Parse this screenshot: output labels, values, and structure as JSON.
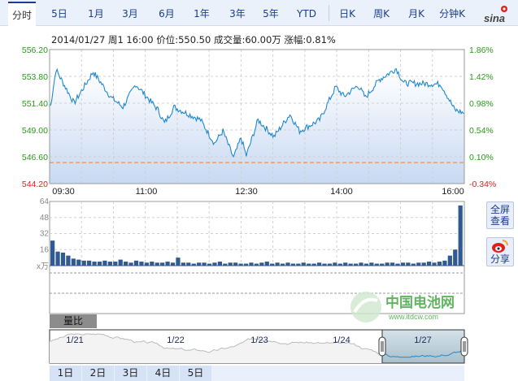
{
  "tabs": [
    {
      "label": "分时",
      "active": true
    },
    {
      "label": "5日"
    },
    {
      "label": "1月"
    },
    {
      "label": "3月"
    },
    {
      "label": "6月"
    },
    {
      "label": "1年"
    },
    {
      "label": "3年"
    },
    {
      "label": "5年"
    },
    {
      "label": "YTD"
    },
    {
      "label": "日K"
    },
    {
      "label": "周K"
    },
    {
      "label": "月K"
    },
    {
      "label": "分钟K"
    }
  ],
  "logo": "sina",
  "info": "2014/01/27 周1 16:00  价位:550.50  成交量:60.00万  涨幅:0.81%",
  "colors": {
    "line": "#1f88d0",
    "prevClose": "#f07d2a",
    "up": "#2a9a1a",
    "down": "#e0201b",
    "volume": "#2f5b92",
    "tabText": "#1a3d8f"
  },
  "chart_data": [
    {
      "type": "area",
      "ylim": [
        544.2,
        556.2
      ],
      "y_ticks_left": [
        "556.20",
        "553.80",
        "551.40",
        "549.00",
        "546.60",
        "544.20"
      ],
      "y_ticks_right": [
        "1.86%",
        "1.42%",
        "0.98%",
        "0.54%",
        "0.10%",
        "-0.34%"
      ],
      "x_ticks": [
        "09:30",
        "11:00",
        "12:30",
        "14:00",
        "16:00"
      ],
      "prev_close": 546.08,
      "grid": true,
      "points": [
        [
          "09:30",
          551.2
        ],
        [
          "09:31",
          551.2
        ],
        [
          "09:36",
          554.4
        ],
        [
          "09:53",
          551.4
        ],
        [
          "10:11",
          554.2
        ],
        [
          "10:28",
          551.9
        ],
        [
          "10:39",
          551.05
        ],
        [
          "10:51",
          553.1
        ],
        [
          "11:12",
          550.8
        ],
        [
          "11:18",
          549.6
        ],
        [
          "11:27",
          551.05
        ],
        [
          "11:52",
          549.9
        ],
        [
          "12:05",
          547.8
        ],
        [
          "12:13",
          548.9
        ],
        [
          "12:23",
          546.5
        ],
        [
          "12:30",
          548.3
        ],
        [
          "12:35",
          546.7
        ],
        [
          "12:46",
          549.9
        ],
        [
          "13:01",
          548.4
        ],
        [
          "13:16",
          550.4
        ],
        [
          "13:25",
          548.9
        ],
        [
          "13:44",
          549.9
        ],
        [
          "13:59",
          552.85
        ],
        [
          "14:07",
          552.0
        ],
        [
          "14:20",
          553.0
        ],
        [
          "14:27",
          551.9
        ],
        [
          "14:40",
          553.5
        ],
        [
          "14:56",
          554.5
        ],
        [
          "15:03",
          553.2
        ],
        [
          "15:38",
          553.1
        ],
        [
          "15:51",
          550.8
        ],
        [
          "16:00",
          550.5
        ]
      ]
    },
    {
      "type": "bar",
      "unit": "x万",
      "ylim": [
        0,
        64
      ],
      "y_ticks": [
        "64",
        "48",
        "32",
        "16"
      ],
      "values": [
        25,
        14,
        13,
        10,
        7,
        6,
        5,
        5,
        4,
        4,
        5,
        4,
        4,
        6,
        4,
        3,
        5,
        4,
        3,
        4,
        3,
        3,
        4,
        3,
        8,
        3,
        3,
        2,
        3,
        3,
        2,
        3,
        4,
        2,
        3,
        3,
        2,
        2,
        3,
        2,
        3,
        4,
        2,
        3,
        2,
        3,
        2,
        2,
        3,
        2,
        2,
        3,
        2,
        2,
        3,
        2,
        3,
        2,
        2,
        3,
        2,
        3,
        2,
        2,
        3,
        3,
        2,
        3,
        3,
        2,
        3,
        3,
        4,
        3,
        4,
        5,
        10,
        16,
        60
      ]
    }
  ],
  "volume_tab": "量比",
  "navigator": {
    "dates": [
      "1/21",
      "1/22",
      "1/23",
      "1/24",
      "1/27"
    ]
  },
  "side_buttons": {
    "fullscreen": "全屏查看",
    "share": "分享"
  },
  "day_buttons": [
    "1日",
    "2日",
    "3日",
    "4日",
    "5日"
  ],
  "watermark": {
    "name": "中国电池网",
    "url": "www.itdcw.com"
  }
}
